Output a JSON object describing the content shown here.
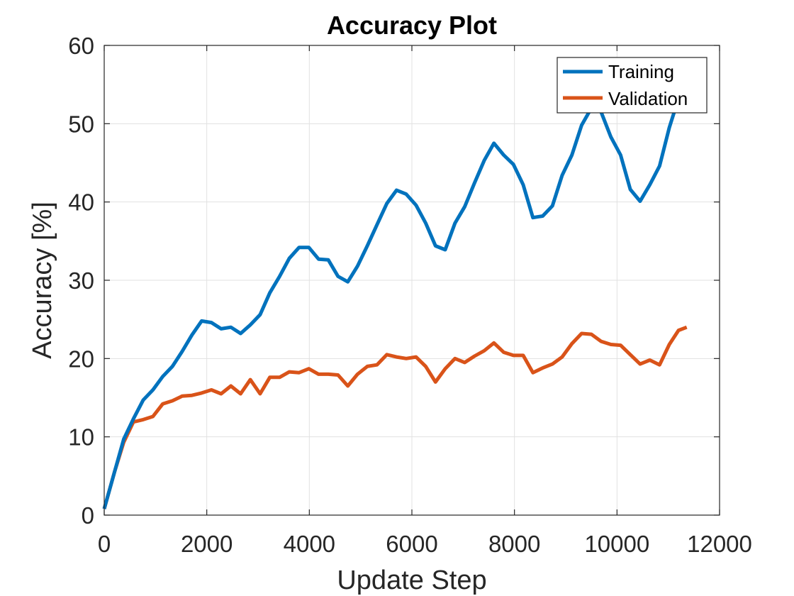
{
  "chart_data": {
    "type": "line",
    "title": "Accuracy Plot",
    "xlabel": "Update Step",
    "ylabel": "Accuracy [%]",
    "xlim": [
      0,
      12000
    ],
    "ylim": [
      0,
      60
    ],
    "xticks": [
      0,
      2000,
      4000,
      6000,
      8000,
      10000,
      12000
    ],
    "yticks": [
      0,
      10,
      20,
      30,
      40,
      50,
      60
    ],
    "grid": true,
    "legend_position": "top-right",
    "series": [
      {
        "name": "Training",
        "color": "#0072BD",
        "x": [
          0,
          200,
          380,
          570,
          760,
          950,
          1140,
          1330,
          1520,
          1710,
          1900,
          2090,
          2280,
          2470,
          2660,
          2850,
          3040,
          3230,
          3420,
          3610,
          3800,
          3990,
          4180,
          4370,
          4560,
          4750,
          4940,
          5130,
          5320,
          5510,
          5700,
          5890,
          6080,
          6270,
          6460,
          6650,
          6840,
          7030,
          7220,
          7410,
          7600,
          7790,
          7980,
          8170,
          8360,
          8550,
          8740,
          8930,
          9120,
          9310,
          9500,
          9690,
          9880,
          10070,
          10260,
          10450,
          10640,
          10830,
          11020,
          11160
        ],
        "y": [
          0.8,
          5.5,
          9.7,
          12.3,
          14.7,
          16.0,
          17.7,
          19.0,
          20.9,
          23.0,
          24.8,
          24.6,
          23.8,
          24.0,
          23.2,
          24.3,
          25.6,
          28.4,
          30.5,
          32.8,
          34.2,
          34.2,
          32.7,
          32.6,
          30.5,
          29.8,
          31.8,
          34.4,
          37.1,
          39.8,
          41.5,
          41.0,
          39.6,
          37.3,
          34.4,
          33.9,
          37.3,
          39.4,
          42.4,
          45.3,
          47.5,
          46.0,
          44.8,
          42.2,
          38.0,
          38.2,
          39.5,
          43.4,
          46.0,
          49.8,
          52.0,
          51.5,
          48.3,
          46.0,
          41.6,
          40.1,
          42.2,
          44.6,
          49.5,
          52.4
        ]
      },
      {
        "name": "Validation",
        "color": "#D95319",
        "x": [
          0,
          200,
          380,
          570,
          760,
          950,
          1140,
          1330,
          1520,
          1710,
          1900,
          2090,
          2280,
          2470,
          2660,
          2850,
          3040,
          3230,
          3420,
          3610,
          3800,
          3990,
          4180,
          4370,
          4560,
          4750,
          4940,
          5130,
          5320,
          5510,
          5700,
          5890,
          6080,
          6270,
          6460,
          6650,
          6840,
          7030,
          7220,
          7410,
          7600,
          7790,
          7980,
          8170,
          8360,
          8550,
          8740,
          8930,
          9120,
          9310,
          9500,
          9690,
          9880,
          10070,
          10260,
          10450,
          10640,
          10830,
          11020,
          11200,
          11360
        ],
        "y": [
          0.8,
          5.5,
          9.3,
          11.9,
          12.2,
          12.6,
          14.2,
          14.6,
          15.2,
          15.3,
          15.6,
          16.0,
          15.5,
          16.5,
          15.5,
          17.3,
          15.5,
          17.6,
          17.6,
          18.3,
          18.2,
          18.7,
          18.0,
          18.0,
          17.9,
          16.5,
          18.0,
          19.0,
          19.2,
          20.5,
          20.2,
          20.0,
          20.2,
          19.0,
          17.0,
          18.7,
          20.0,
          19.5,
          20.3,
          21.0,
          22.0,
          20.8,
          20.4,
          20.4,
          18.2,
          18.8,
          19.3,
          20.2,
          21.9,
          23.2,
          23.1,
          22.2,
          21.8,
          21.7,
          20.5,
          19.3,
          19.8,
          19.2,
          21.8,
          23.6,
          24.0
        ]
      }
    ]
  }
}
